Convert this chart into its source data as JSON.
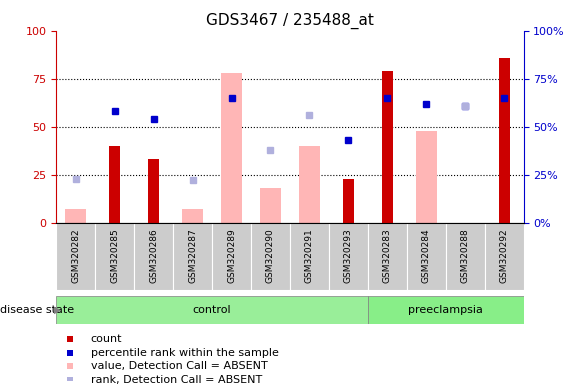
{
  "title": "GDS3467 / 235488_at",
  "samples": [
    "GSM320282",
    "GSM320285",
    "GSM320286",
    "GSM320287",
    "GSM320289",
    "GSM320290",
    "GSM320291",
    "GSM320293",
    "GSM320283",
    "GSM320284",
    "GSM320288",
    "GSM320292"
  ],
  "count": [
    0,
    40,
    33,
    0,
    0,
    0,
    0,
    23,
    79,
    0,
    0,
    86
  ],
  "value_absent": [
    7,
    0,
    0,
    7,
    78,
    18,
    40,
    0,
    0,
    48,
    0,
    0
  ],
  "pct_rank": [
    null,
    58,
    54,
    null,
    65,
    null,
    null,
    43,
    65,
    62,
    61,
    65
  ],
  "rank_absent": [
    23,
    null,
    null,
    22,
    null,
    38,
    56,
    null,
    null,
    null,
    61,
    null
  ],
  "control_indices": [
    0,
    1,
    2,
    3,
    4,
    5,
    6,
    7
  ],
  "preeclampsia_indices": [
    8,
    9,
    10,
    11
  ],
  "count_color": "#cc0000",
  "value_absent_color": "#ffb6b6",
  "pct_rank_color": "#0000cc",
  "rank_absent_color": "#b0b0dd",
  "control_color": "#99ee99",
  "preeclampsia_color": "#88ee88",
  "sample_bg_color": "#cccccc",
  "title_fontsize": 11,
  "tick_fontsize": 8,
  "legend_fontsize": 8
}
